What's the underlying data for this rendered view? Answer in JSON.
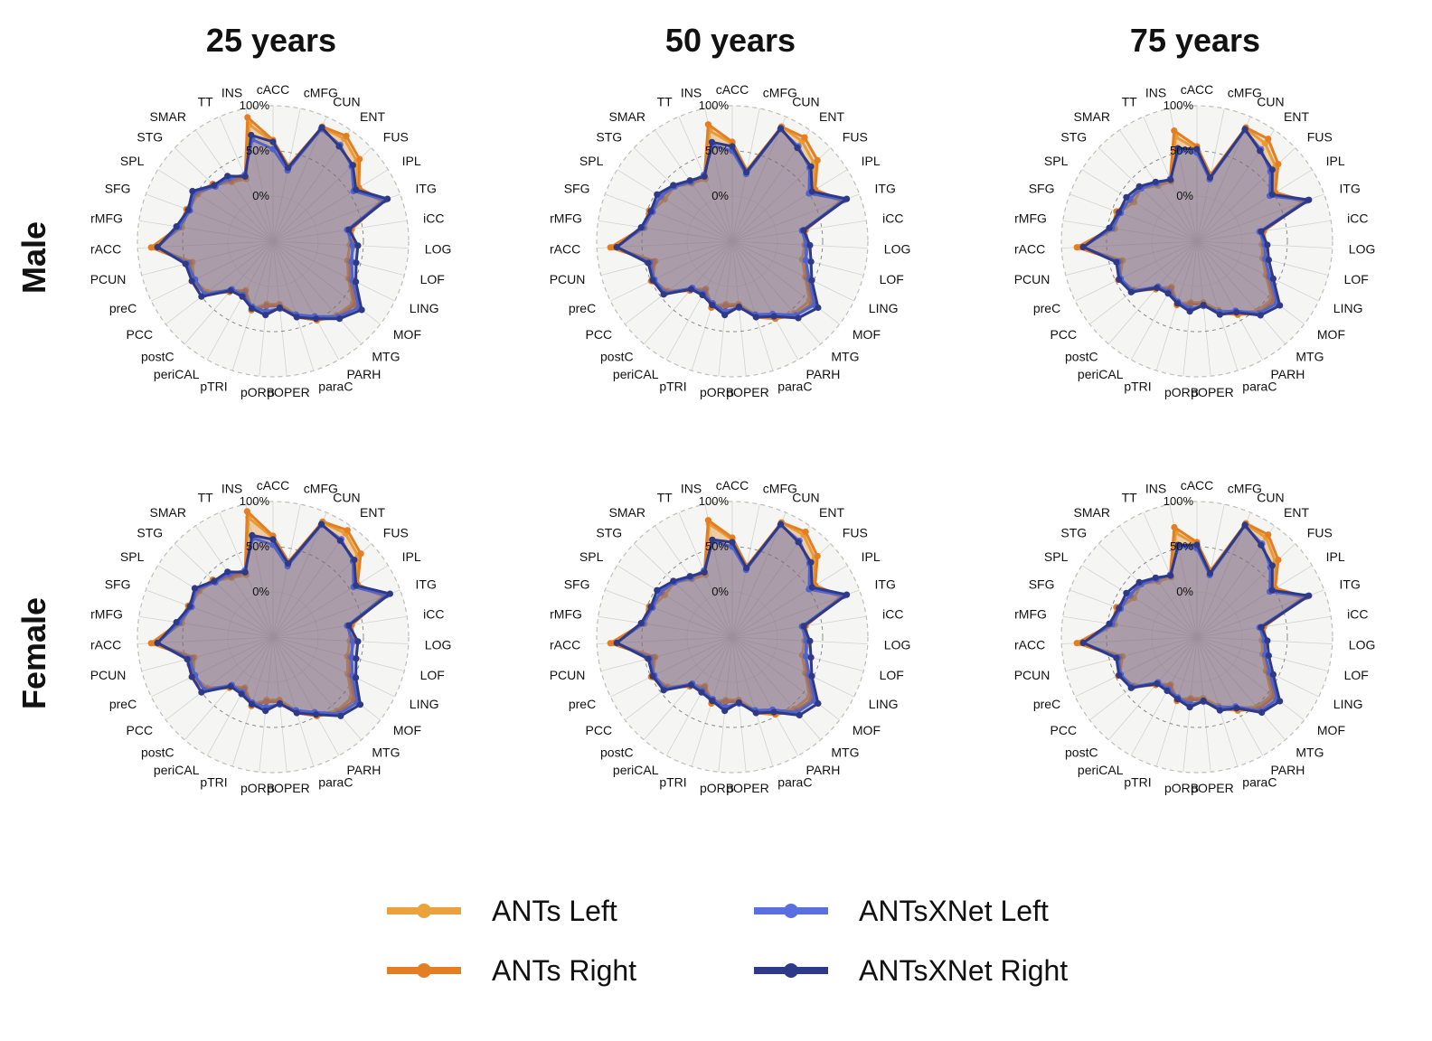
{
  "columns": [
    "25 years",
    "50 years",
    "75 years"
  ],
  "rows": [
    "Male",
    "Female"
  ],
  "legend": [
    {
      "label": "ANTs Left",
      "color": "#E8A33D"
    },
    {
      "label": "ANTs Right",
      "color": "#E37E22"
    },
    {
      "label": "ANTsXNet Left",
      "color": "#5A6FE0"
    },
    {
      "label": "ANTsXNet Right",
      "color": "#2E3A87"
    }
  ],
  "chart_data": {
    "type": "radar",
    "radial_ticks": [
      "0%",
      "50%",
      "100%"
    ],
    "rlim": [
      -50,
      100
    ],
    "regions": [
      "cACC",
      "cMFG",
      "CUN",
      "ENT",
      "FUS",
      "IPL",
      "ITG",
      "iCC",
      "LOG",
      "LOF",
      "LING",
      "MOF",
      "MTG",
      "PARH",
      "paraC",
      "pOPER",
      "pORB",
      "pTRI",
      "periCAL",
      "postC",
      "PCC",
      "preC",
      "PCUN",
      "rACC",
      "rMFG",
      "SFG",
      "SPL",
      "STG",
      "SMAR",
      "TT",
      "INS"
    ],
    "series_names": [
      "ANTs Left",
      "ANTs Right",
      "ANTsXNet Left",
      "ANTsXNet Right"
    ],
    "panels": [
      {
        "row": "Male",
        "column": "25 years",
        "series": [
          {
            "name": "ANTs Left",
            "values": [
              60,
              32,
              87,
              88,
              78,
              60,
              78,
              35,
              35,
              35,
              43,
              62,
              58,
              48,
              35,
              20,
              20,
              28,
              12,
              22,
              42,
              48,
              42,
              82,
              52,
              50,
              48,
              40,
              30,
              25,
              82
            ]
          },
          {
            "name": "ANTs Right",
            "values": [
              62,
              35,
              88,
              92,
              82,
              62,
              80,
              38,
              40,
              38,
              45,
              65,
              60,
              50,
              38,
              22,
              22,
              30,
              14,
              24,
              45,
              50,
              45,
              85,
              55,
              52,
              50,
              42,
              32,
              28,
              90
            ]
          },
          {
            "name": "ANTsXNet Left",
            "values": [
              52,
              30,
              85,
              80,
              70,
              55,
              82,
              33,
              38,
              40,
              48,
              70,
              60,
              45,
              35,
              25,
              28,
              26,
              18,
              20,
              46,
              46,
              48,
              78,
              55,
              48,
              52,
              38,
              35,
              30,
              65
            ]
          },
          {
            "name": "ANTsXNet Right",
            "values": [
              60,
              33,
              87,
              78,
              72,
              58,
              85,
              35,
              44,
              45,
              52,
              74,
              63,
              48,
              38,
              24,
              32,
              28,
              20,
              22,
              50,
              50,
              50,
              78,
              58,
              50,
              55,
              40,
              38,
              28,
              70
            ]
          }
        ]
      },
      {
        "row": "Male",
        "column": "50 years",
        "series": [
          {
            "name": "ANTs Left",
            "values": [
              58,
              28,
              88,
              85,
              75,
              55,
              78,
              30,
              30,
              30,
              40,
              58,
              55,
              45,
              35,
              20,
              20,
              25,
              10,
              20,
              40,
              48,
              38,
              82,
              48,
              45,
              38,
              38,
              28,
              25,
              75
            ]
          },
          {
            "name": "ANTs Right",
            "values": [
              60,
              30,
              88,
              90,
              80,
              58,
              80,
              32,
              34,
              34,
              42,
              62,
              58,
              48,
              38,
              22,
              22,
              27,
              12,
              22,
              42,
              50,
              40,
              85,
              50,
              48,
              42,
              40,
              30,
              28,
              82
            ]
          },
          {
            "name": "ANTsXNet Left",
            "values": [
              50,
              26,
              85,
              78,
              68,
              50,
              82,
              28,
              32,
              34,
              45,
              65,
              58,
              42,
              35,
              24,
              28,
              22,
              16,
              18,
              44,
              46,
              44,
              78,
              50,
              44,
              44,
              38,
              30,
              30,
              58
            ]
          },
          {
            "name": "ANTsXNet Right",
            "values": [
              55,
              28,
              86,
              76,
              70,
              54,
              85,
              30,
              36,
              40,
              48,
              70,
              62,
              45,
              38,
              23,
              32,
              24,
              18,
              20,
              46,
              48,
              46,
              78,
              52,
              46,
              48,
              40,
              32,
              28,
              62
            ]
          }
        ]
      },
      {
        "row": "Male",
        "column": "75 years",
        "series": [
          {
            "name": "ANTs Left",
            "values": [
              52,
              22,
              86,
              82,
              70,
              50,
              75,
              22,
              22,
              25,
              35,
              55,
              52,
              40,
              30,
              18,
              18,
              22,
              8,
              18,
              38,
              45,
              35,
              80,
              42,
              42,
              32,
              35,
              25,
              22,
              68
            ]
          },
          {
            "name": "ANTs Right",
            "values": [
              55,
              25,
              87,
              88,
              74,
              52,
              78,
              25,
              26,
              28,
              38,
              58,
              55,
              43,
              33,
              20,
              20,
              24,
              10,
              20,
              40,
              47,
              38,
              83,
              45,
              45,
              36,
              38,
              28,
              25,
              75
            ]
          },
          {
            "name": "ANTsXNet Left",
            "values": [
              48,
              20,
              84,
              74,
              62,
              45,
              80,
              20,
              25,
              28,
              40,
              62,
              55,
              38,
              32,
              22,
              25,
              20,
              14,
              16,
              40,
              44,
              40,
              76,
              45,
              40,
              38,
              35,
              28,
              25,
              52
            ]
          },
          {
            "name": "ANTsXNet Right",
            "values": [
              52,
              22,
              85,
              72,
              65,
              48,
              82,
              22,
              28,
              32,
              44,
              66,
              58,
              40,
              35,
              21,
              28,
              22,
              16,
              18,
              42,
              46,
              42,
              76,
              48,
              42,
              42,
              38,
              30,
              24,
              55
            ]
          }
        ]
      },
      {
        "row": "Female",
        "column": "25 years",
        "series": [
          {
            "name": "ANTs Left",
            "values": [
              60,
              32,
              88,
              90,
              80,
              58,
              80,
              35,
              35,
              35,
              42,
              60,
              58,
              48,
              35,
              20,
              20,
              28,
              14,
              22,
              42,
              48,
              40,
              82,
              52,
              48,
              46,
              40,
              30,
              25,
              85
            ]
          },
          {
            "name": "ANTs Right",
            "values": [
              62,
              35,
              89,
              94,
              84,
              60,
              82,
              38,
              40,
              38,
              45,
              64,
              60,
              50,
              38,
              22,
              22,
              30,
              16,
              24,
              45,
              50,
              42,
              85,
              55,
              50,
              48,
              42,
              32,
              28,
              92
            ]
          },
          {
            "name": "ANTsXNet Left",
            "values": [
              52,
              30,
              85,
              82,
              72,
              55,
              84,
              33,
              38,
              40,
              48,
              68,
              62,
              45,
              35,
              25,
              28,
              26,
              20,
              20,
              46,
              46,
              46,
              78,
              55,
              46,
              50,
              38,
              35,
              30,
              62
            ]
          },
          {
            "name": "ANTsXNet Right",
            "values": [
              58,
              33,
              86,
              80,
              74,
              58,
              88,
              35,
              44,
              45,
              52,
              72,
              65,
              48,
              38,
              24,
              32,
              28,
              22,
              22,
              50,
              50,
              48,
              78,
              58,
              48,
              52,
              40,
              38,
              28,
              65
            ]
          }
        ]
      },
      {
        "row": "Female",
        "column": "50 years",
        "series": [
          {
            "name": "ANTs Left",
            "values": [
              58,
              28,
              88,
              88,
              76,
              55,
              78,
              30,
              30,
              30,
              40,
              58,
              55,
              45,
              35,
              20,
              20,
              25,
              12,
              20,
              40,
              48,
              38,
              82,
              48,
              45,
              38,
              38,
              28,
              25,
              78
            ]
          },
          {
            "name": "ANTs Right",
            "values": [
              60,
              30,
              88,
              92,
              80,
              58,
              80,
              32,
              34,
              34,
              42,
              62,
              58,
              48,
              38,
              22,
              22,
              27,
              14,
              22,
              42,
              50,
              40,
              85,
              50,
              48,
              42,
              40,
              30,
              28,
              82
            ]
          },
          {
            "name": "ANTsXNet Left",
            "values": [
              50,
              26,
              85,
              80,
              68,
              50,
              82,
              28,
              32,
              34,
              45,
              65,
              60,
              42,
              35,
              24,
              28,
              22,
              18,
              18,
              44,
              46,
              44,
              78,
              50,
              44,
              44,
              38,
              30,
              30,
              58
            ]
          },
          {
            "name": "ANTsXNet Right",
            "values": [
              55,
              28,
              86,
              78,
              70,
              54,
              85,
              30,
              36,
              40,
              48,
              70,
              64,
              45,
              38,
              23,
              32,
              24,
              20,
              20,
              46,
              48,
              46,
              78,
              52,
              46,
              48,
              40,
              32,
              28,
              60
            ]
          }
        ]
      },
      {
        "row": "Female",
        "column": "75 years",
        "series": [
          {
            "name": "ANTs Left",
            "values": [
              52,
              22,
              86,
              84,
              70,
              50,
              75,
              22,
              22,
              25,
              35,
              55,
              52,
              40,
              30,
              18,
              18,
              22,
              10,
              18,
              38,
              45,
              35,
              80,
              42,
              42,
              32,
              35,
              25,
              22,
              68
            ]
          },
          {
            "name": "ANTs Right",
            "values": [
              55,
              25,
              87,
              88,
              74,
              52,
              78,
              25,
              26,
              28,
              38,
              58,
              55,
              43,
              33,
              20,
              20,
              24,
              12,
              20,
              40,
              47,
              38,
              83,
              45,
              45,
              36,
              38,
              28,
              25,
              74
            ]
          },
          {
            "name": "ANTsXNet Left",
            "values": [
              48,
              20,
              84,
              76,
              62,
              45,
              80,
              20,
              25,
              28,
              40,
              62,
              58,
              38,
              32,
              22,
              25,
              20,
              16,
              16,
              40,
              44,
              40,
              76,
              45,
              40,
              38,
              35,
              28,
              25,
              52
            ]
          },
          {
            "name": "ANTsXNet Right",
            "values": [
              52,
              22,
              85,
              74,
              65,
              48,
              82,
              22,
              28,
              32,
              44,
              66,
              60,
              40,
              35,
              21,
              28,
              22,
              18,
              18,
              42,
              46,
              42,
              76,
              48,
              42,
              42,
              38,
              30,
              24,
              54
            ]
          }
        ]
      }
    ]
  }
}
